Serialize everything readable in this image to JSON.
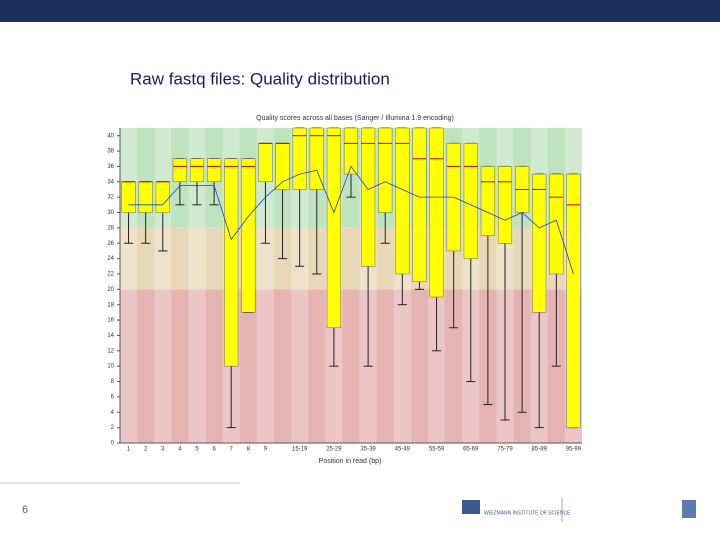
{
  "slide": {
    "title": "Raw fastq files: Quality distribution",
    "page_number": "6",
    "logo_text": "WEIZMANN INSTITUTE OF SCIENCE"
  },
  "chart_data": {
    "type": "box",
    "title": "Quality scores across all bases (Sanger / Illumina 1.9 encoding)",
    "x_label": "Position in read (bp)",
    "categories": [
      "1",
      "2",
      "3",
      "4",
      "5",
      "6",
      "7",
      "8",
      "9",
      null,
      "15-19",
      null,
      "25-29",
      null,
      "35-39",
      null,
      "45-49",
      null,
      "55-59",
      null,
      "65-69",
      null,
      "75-79",
      null,
      "85-89",
      null,
      "95-99"
    ],
    "whisker_low": [
      26,
      26,
      25,
      31,
      31,
      31,
      2,
      17,
      26,
      24,
      23,
      22,
      10,
      32,
      10,
      26,
      18,
      20,
      12,
      15,
      8,
      5,
      3,
      4,
      2,
      10,
      2
    ],
    "q1": [
      30,
      30,
      30,
      34,
      34,
      34,
      10,
      17,
      34,
      33,
      33,
      33,
      15,
      35,
      23,
      30,
      22,
      21,
      19,
      25,
      24,
      27,
      26,
      30,
      17,
      22,
      2
    ],
    "median": [
      34,
      34,
      34,
      36,
      36,
      36,
      36,
      36,
      39,
      39,
      40,
      40,
      40,
      39,
      39,
      39,
      39,
      37,
      37,
      36,
      36,
      34,
      34,
      33,
      33,
      32,
      31
    ],
    "q3": [
      34,
      34,
      34,
      37,
      37,
      37,
      37,
      37,
      39,
      39,
      41,
      41,
      41,
      41,
      41,
      41,
      41,
      41,
      41,
      39,
      39,
      36,
      36,
      36,
      35,
      35,
      35
    ],
    "whisker_high": [
      34,
      34,
      34,
      37,
      37,
      37,
      37,
      37,
      39,
      39,
      41,
      41,
      41,
      41,
      41,
      41,
      41,
      41,
      41,
      39,
      39,
      36,
      36,
      36,
      35,
      35,
      35
    ],
    "mean": [
      31,
      31,
      31,
      33.5,
      33.5,
      33.5,
      26.5,
      29.5,
      32,
      34,
      35,
      35.5,
      30,
      36,
      33,
      34,
      33,
      32,
      32,
      32,
      31,
      30,
      29,
      30,
      28,
      29,
      22
    ],
    "ylim": [
      0,
      41
    ],
    "yticks": [
      0,
      2,
      4,
      6,
      8,
      10,
      12,
      14,
      16,
      18,
      20,
      22,
      24,
      26,
      28,
      30,
      32,
      34,
      36,
      38,
      40
    ],
    "zones": [
      {
        "from": 0,
        "to": 20,
        "color": "#e6b3b3"
      },
      {
        "from": 20,
        "to": 28,
        "color": "#e8d8b8"
      },
      {
        "from": 28,
        "to": 41,
        "color": "#bfe3bf"
      }
    ],
    "box_color": "#ffff00",
    "median_color": "#d00000",
    "mean_color": "#2040c0"
  }
}
